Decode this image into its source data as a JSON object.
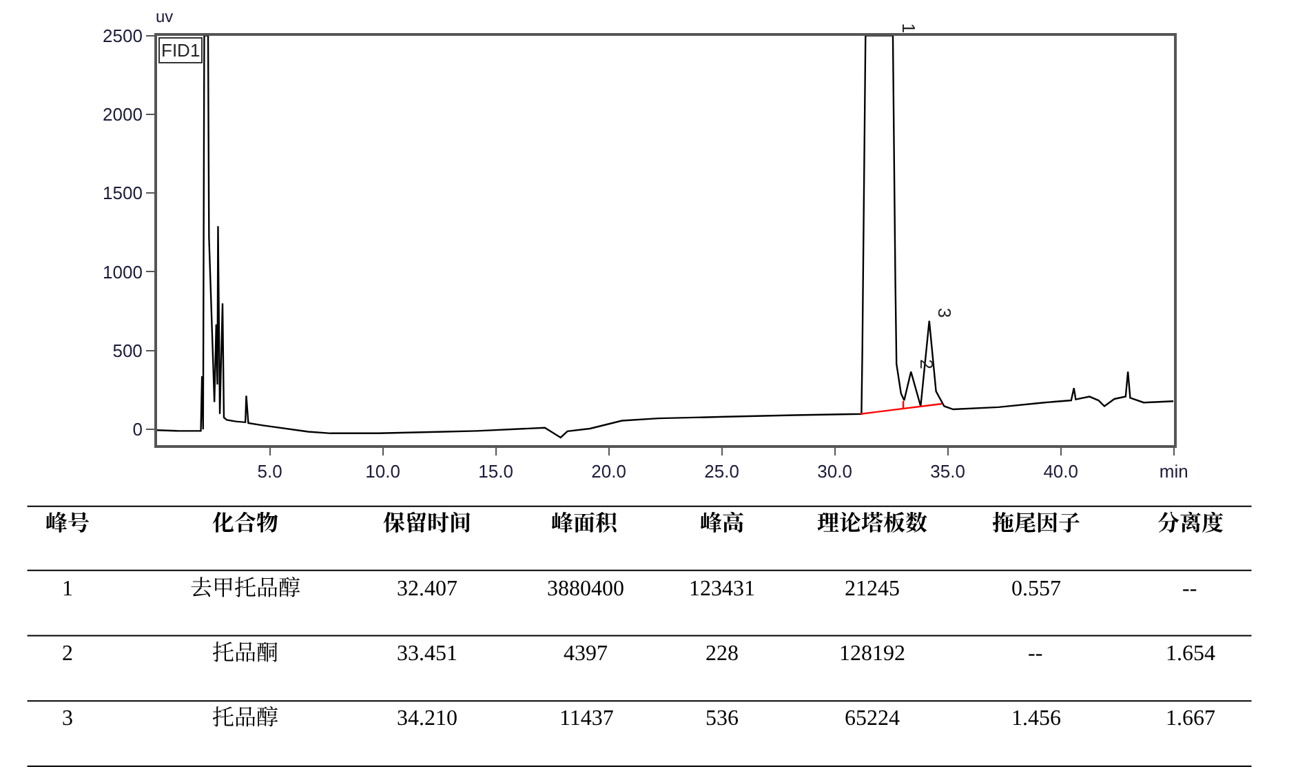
{
  "chart_data": [
    {
      "type": "line",
      "ylabel": "uv",
      "annotations": [
        "FID1",
        {
          "text": "1",
          "x": 32.57,
          "y": 2500
        },
        {
          "text": "2",
          "x": 33.37,
          "y": 366
        },
        {
          "text": "3",
          "x": 34.18,
          "y": 689
        }
      ],
      "xlim": [
        0,
        45
      ],
      "ylim": [
        -100,
        2500
      ],
      "xticks": [
        {
          "value": 5,
          "label": "5.0"
        },
        {
          "value": 10,
          "label": "10.0"
        },
        {
          "value": 15,
          "label": "15.0"
        },
        {
          "value": 20,
          "label": "20.0"
        },
        {
          "value": 25,
          "label": "25.0"
        },
        {
          "value": 30,
          "label": "30.0"
        },
        {
          "value": 35,
          "label": "35.0"
        },
        {
          "value": 40,
          "label": "40.0"
        },
        {
          "value": 45,
          "label": "min"
        }
      ],
      "yticks": [
        0,
        500,
        1000,
        1500,
        2000,
        2500
      ],
      "series": [
        {
          "color": "#000000",
          "x": [
            0,
            1.0,
            1.95,
            2.0,
            2.05,
            2.1,
            2.15,
            2.27,
            2.31,
            2.55,
            2.63,
            2.68,
            2.71,
            2.79,
            2.91,
            2.97,
            3.1,
            3.5,
            3.92,
            3.96,
            4.05,
            4.7,
            6.7,
            7.7,
            9.8,
            12.75,
            14.16,
            17.17,
            17.87,
            18.17,
            19.17,
            20.58,
            22.19,
            25.2,
            28.2,
            31.18,
            31.22,
            31.36,
            32.57,
            32.68,
            32.73,
            32.93,
            33.07,
            33.37,
            33.8,
            34.18,
            34.48,
            34.84,
            35.24,
            37.25,
            39.26,
            40.46,
            40.58,
            40.66,
            41.27,
            41.67,
            41.93,
            42.37,
            42.87,
            42.97,
            43.07,
            43.67,
            44.98
          ],
          "values": [
            -5,
            -10,
            -10,
            337,
            0,
            2500,
            2500,
            2500,
            1220,
            173,
            666,
            285,
            1290,
            98,
            800,
            75,
            60,
            50,
            45,
            213,
            40,
            25,
            -15,
            -25,
            -25,
            -15,
            -10,
            10,
            -52,
            -12,
            5,
            55,
            70,
            80,
            90,
            98,
            500,
            2500,
            2500,
            934,
            415,
            228,
            184,
            366,
            147,
            689,
            242,
            147,
            127,
            141,
            170,
            184,
            262,
            190,
            208,
            184,
            147,
            193,
            208,
            366,
            200,
            170,
            179
          ]
        },
        {
          "color": "#ff0000",
          "x": [
            31.14,
            34.74
          ],
          "values": [
            98,
            162
          ]
        },
        {
          "color": "#ff0000",
          "x": [
            33.03,
            33.03
          ],
          "values": [
            132,
            180
          ]
        }
      ]
    },
    {
      "type": "other",
      "categories": [
        "峰号",
        "化合物",
        "保留时间",
        "峰面积",
        "峰高",
        "理论塔板数",
        "拖尾因子",
        "分离度"
      ],
      "cell_labels": [
        [
          "1",
          "去甲托品醇",
          "32.407",
          "3880400",
          "123431",
          "21245",
          "0.557",
          "--"
        ],
        [
          "2",
          "托品酮",
          "33.451",
          "4397",
          "228",
          "128192",
          "--",
          "1.654"
        ],
        [
          "3",
          "托品醇",
          "34.210",
          "11437",
          "536",
          "65224",
          "1.456",
          "1.667"
        ]
      ]
    }
  ]
}
